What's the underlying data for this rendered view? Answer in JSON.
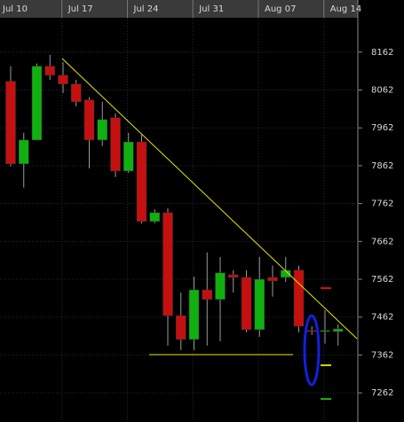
{
  "chart_data": {
    "type": "candlestick",
    "categories": [
      "Jul 10",
      null,
      null,
      null,
      null,
      "Jul 17",
      null,
      null,
      null,
      null,
      "Jul 24",
      null,
      null,
      null,
      null,
      "Jul 31",
      null,
      null,
      null,
      null,
      "Aug 07",
      null,
      null,
      null,
      null,
      "Aug 14"
    ],
    "open": [
      8085,
      7867,
      7930,
      8125,
      8101,
      8078,
      8036,
      7930,
      7989,
      7848,
      7925,
      7715,
      7738,
      7466,
      7403,
      7534,
      7509,
      7574,
      7567,
      7429,
      7567,
      7567,
      7586,
      7427,
      7424,
      7424
    ],
    "high": [
      8125,
      7949,
      8132,
      8155,
      8136,
      8089,
      8043,
      8031,
      8000,
      7949,
      7944,
      7747,
      7750,
      7527,
      7569,
      7633,
      7621,
      7586,
      7586,
      7621,
      7598,
      7621,
      7598,
      7438,
      7480,
      7443
    ],
    "low": [
      7860,
      7804,
      7930,
      8089,
      8054,
      8019,
      7855,
      7914,
      7832,
      7843,
      7710,
      7710,
      7387,
      7375,
      7375,
      7387,
      7398,
      7527,
      7422,
      7410,
      7516,
      7555,
      7422,
      7415,
      7392,
      7387
    ],
    "close": [
      7867,
      7930,
      8125,
      8101,
      8078,
      8031,
      7930,
      7984,
      7848,
      7925,
      7715,
      7738,
      7466,
      7403,
      7534,
      7509,
      7579,
      7567,
      7429,
      7562,
      7558,
      7586,
      7438,
      7424,
      7427,
      7431
    ],
    "up_color": "#10b010",
    "down_color": "#c41010",
    "ylim": [
      7185,
      8253
    ],
    "yticks": [
      7262,
      7362,
      7462,
      7562,
      7662,
      7762,
      7862,
      7962,
      8062,
      8162
    ],
    "grid": true
  }
}
